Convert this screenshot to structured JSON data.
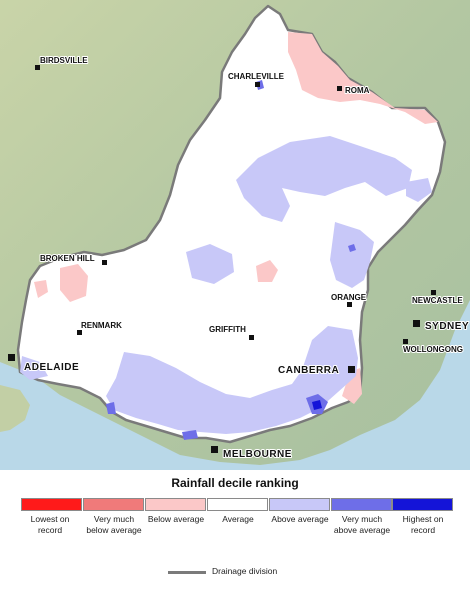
{
  "legend": {
    "title": "Rainfall decile ranking",
    "categories": [
      {
        "label": "Lowest on record",
        "color": "#ff1a1a"
      },
      {
        "label": "Very much below average",
        "color": "#f07a7a"
      },
      {
        "label": "Below average",
        "color": "#fbc8c8"
      },
      {
        "label": "Average",
        "color": "#ffffff"
      },
      {
        "label": "Above average",
        "color": "#c8c8f8"
      },
      {
        "label": "Very much above average",
        "color": "#6e6ee8"
      },
      {
        "label": "Highest on record",
        "color": "#1414d8"
      }
    ],
    "boundary_label": "Drainage division"
  },
  "map": {
    "cities": {
      "birdsville": "BIRDSVILLE",
      "charleville": "CHARLEVILLE",
      "roma": "ROMA",
      "broken_hill": "BROKEN HILL",
      "orange": "ORANGE",
      "newcastle": "NEWCASTLE",
      "sydney": "SYDNEY",
      "wollongong": "WOLLONGONG",
      "renmark": "RENMARK",
      "griffith": "GRIFFITH",
      "adelaide": "ADELAIDE",
      "canberra": "CANBERRA",
      "melbourne": "MELBOURNE"
    },
    "colors": {
      "ocean": "#b9d8e8",
      "land": "#b7c9a4",
      "divider": "#7a7a7a"
    }
  }
}
